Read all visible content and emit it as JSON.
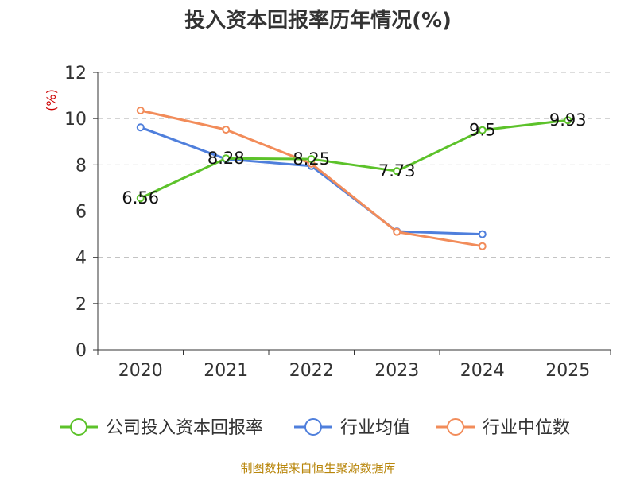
{
  "chart_data": {
    "type": "line",
    "title": "投入资本回报率历年情况(%)",
    "ylabel": "(%)",
    "xlabel": "",
    "ylim": [
      0,
      12
    ],
    "yticks": [
      0,
      2,
      4,
      6,
      8,
      10,
      12
    ],
    "categories": [
      "2020",
      "2021",
      "2022",
      "2023",
      "2024",
      "2025"
    ],
    "grid": true,
    "legend_position": "bottom",
    "series": [
      {
        "name": "公司投入资本回报率",
        "color": "#5cc22a",
        "values": [
          6.56,
          8.28,
          8.25,
          7.73,
          9.5,
          9.93
        ],
        "labels": [
          "6.56",
          "8.28",
          "8.25",
          "7.73",
          "9.5",
          "9.93"
        ],
        "show_labels": true
      },
      {
        "name": "行业均值",
        "color": "#4f7fdc",
        "values": [
          9.62,
          8.25,
          7.95,
          5.12,
          5.0,
          null
        ],
        "show_labels": false
      },
      {
        "name": "行业中位数",
        "color": "#f28c5a",
        "values": [
          10.35,
          9.52,
          8.05,
          5.1,
          4.48,
          null
        ],
        "show_labels": false
      }
    ]
  },
  "footer": {
    "source": "制图数据来自恒生聚源数据库"
  }
}
